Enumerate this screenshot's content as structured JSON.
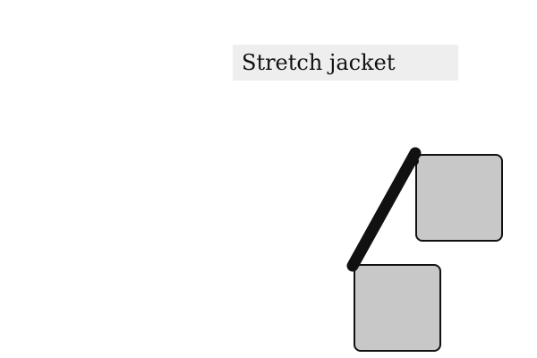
{
  "task": {
    "instruction": "Stretch jacket"
  },
  "colors": {
    "background": "#ffffff",
    "instruction_bg": "#eeeeee",
    "square_fill": "#c8c8c8",
    "square_stroke": "#111111",
    "connector": "#111111"
  }
}
